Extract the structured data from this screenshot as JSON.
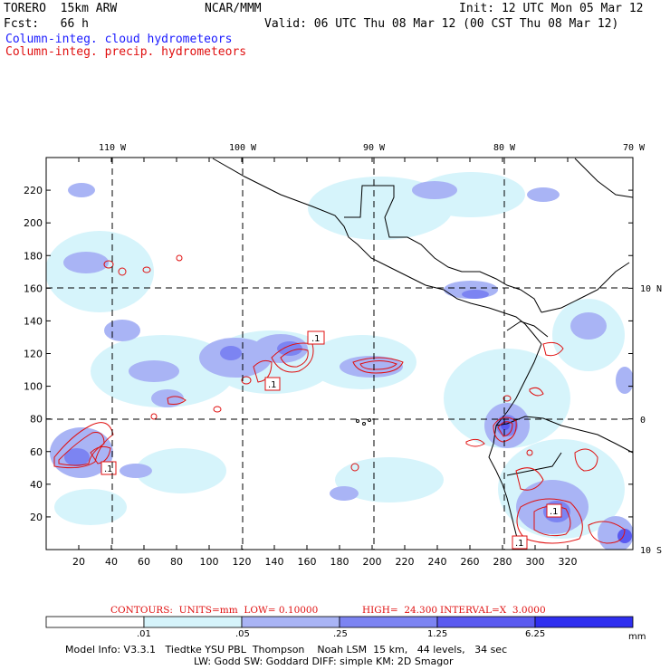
{
  "header": {
    "model": "TORERO  15km ARW",
    "org": "NCAR/MMM",
    "init": "Init: 12 UTC Mon 05 Mar 12",
    "fcst": "Fcst:   66 h",
    "valid": "Valid: 06 UTC Thu 08 Mar 12 (00 CST Thu 08 Mar 12)",
    "legend_cloud": "Column-integ. cloud hydrometeors",
    "legend_precip": "Column-integ. precip. hydrometeors"
  },
  "colors": {
    "cloud_text": "#1a1aff",
    "precip_text": "#e01010",
    "shade_levels": [
      "#ffffff",
      "#d6f4fb",
      "#a9b4f5",
      "#7c84f2",
      "#5a5af0",
      "#2f2ff0"
    ]
  },
  "map": {
    "lon_labels": [
      "110 W",
      "100 W",
      "90 W",
      "80 W",
      "70 W"
    ],
    "lat_labels": [
      "10 N",
      "0",
      "10 S"
    ],
    "x_ticks": [
      "20",
      "40",
      "60",
      "80",
      "100",
      "120",
      "140",
      "160",
      "180",
      "200",
      "220",
      "240",
      "260",
      "280",
      "300",
      "320"
    ],
    "y_ticks": [
      "220",
      "200",
      "180",
      "160",
      "140",
      "120",
      "100",
      "80",
      "60",
      "40",
      "20"
    ],
    "contour_labels": [
      ".1",
      ".1",
      ".1",
      ".1",
      ".1"
    ]
  },
  "contours_note": {
    "units": "CONTOURS:  UNITS=mm  LOW= 0.10000",
    "high": "HIGH=  24.300",
    "interval": "INTERVAL=X  3.0000"
  },
  "colorbar": {
    "labels": [
      ".01",
      ".05",
      ".25",
      "1.25",
      "6.25"
    ],
    "unit": "mm"
  },
  "model_info": {
    "line1": "Model Info: V3.3.1   Tiedtke YSU PBL  Thompson    Noah LSM  15 km,   44 levels,   34 sec",
    "line2": "LW: Godd SW: Goddard DIFF: simple KM: 2D Smagor"
  }
}
